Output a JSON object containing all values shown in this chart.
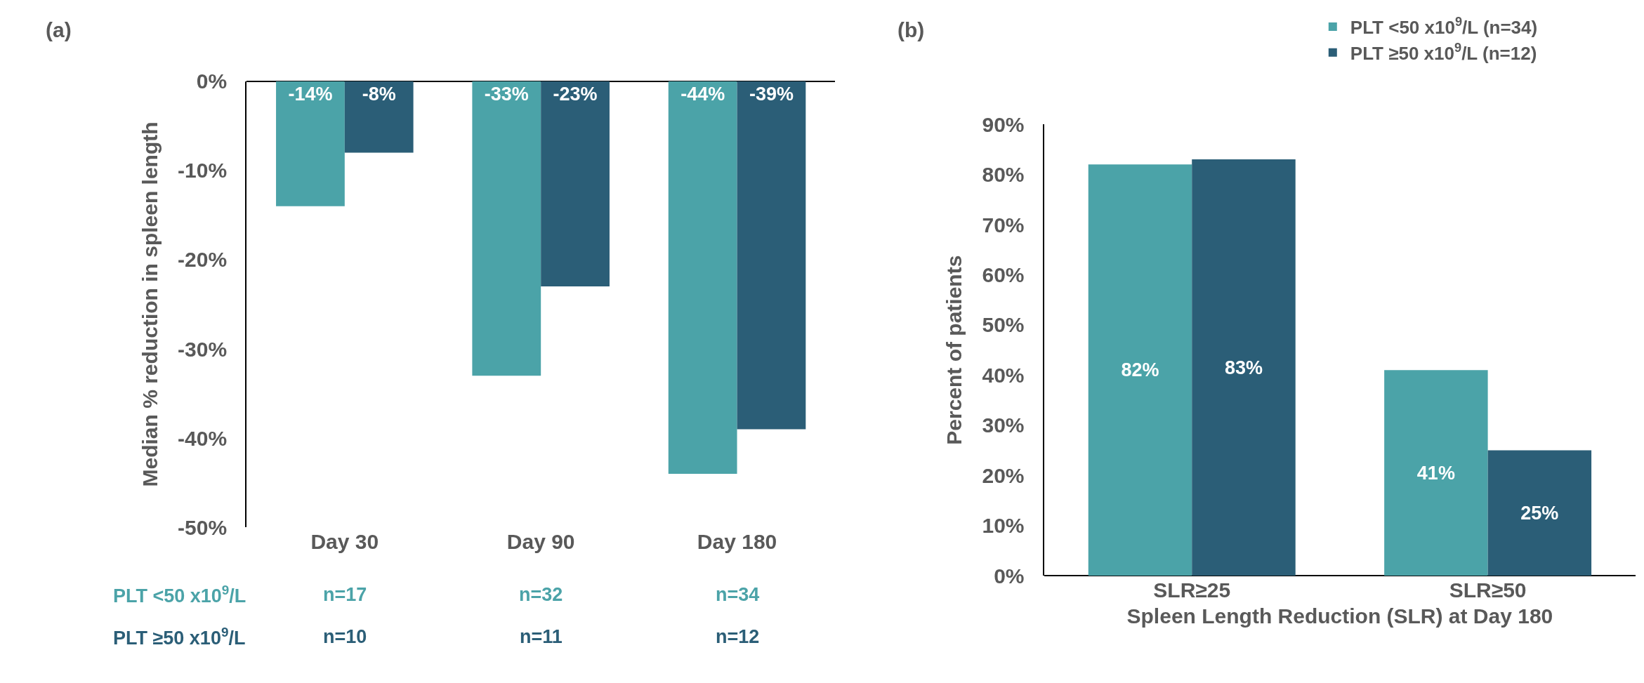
{
  "chart_data": [
    {
      "type": "bar",
      "title": "(a)",
      "ylabel": "Median % reduction in spleen length",
      "categories": [
        "Day 30",
        "Day 90",
        "Day 180"
      ],
      "series": [
        {
          "name": "PLT <50 x10$^{9}$/L",
          "color": "#4ba3a8",
          "values": [
            -14,
            -33,
            -44
          ],
          "value_labels": [
            "-14%",
            "-33%",
            "-44%"
          ]
        },
        {
          "name": "PLT ≥50 x10$^{9}$/L",
          "color": "#2b5e77",
          "values": [
            -8,
            -23,
            -39
          ],
          "value_labels": [
            "-8%",
            "-23%",
            "-39%"
          ]
        }
      ],
      "ylim": [
        -50,
        0
      ],
      "yticks": [
        {
          "value": -50,
          "label": "-50%"
        },
        {
          "value": -40,
          "label": "-40%"
        },
        {
          "value": -30,
          "label": "-30%"
        },
        {
          "value": -20,
          "label": "-20%"
        },
        {
          "value": -10,
          "label": "-10%"
        },
        {
          "value": 0,
          "label": "0%"
        }
      ],
      "annotations": [
        "n=17",
        "n=32",
        "n=34",
        "n=10",
        "n=11",
        "n=12"
      ],
      "legend": false
    },
    {
      "type": "bar",
      "title": "(b)",
      "xlabel": "Spleen Length Reduction (SLR) at Day 180",
      "ylabel": "Percent of patients",
      "categories": [
        "SLR≥25",
        "SLR≥50"
      ],
      "series": [
        {
          "name": "PLT <50 x10$^{9}$/L (n=34)",
          "color": "#4ba3a8",
          "values": [
            82,
            41
          ],
          "value_labels": [
            "82%",
            "41%"
          ]
        },
        {
          "name": "PLT ≥50 x10$^{9}$/L (n=12)",
          "color": "#2b5e77",
          "values": [
            83,
            25
          ],
          "value_labels": [
            "83%",
            "25%"
          ]
        }
      ],
      "ylim": [
        0,
        90
      ],
      "yticks": [
        {
          "value": 0,
          "label": "0%"
        },
        {
          "value": 10,
          "label": "10%"
        },
        {
          "value": 20,
          "label": "20%"
        },
        {
          "value": 30,
          "label": "30%"
        },
        {
          "value": 40,
          "label": "40%"
        },
        {
          "value": 50,
          "label": "50%"
        },
        {
          "value": 60,
          "label": "60%"
        },
        {
          "value": 70,
          "label": "70%"
        },
        {
          "value": 80,
          "label": "80%"
        },
        {
          "value": 90,
          "label": "90%"
        }
      ],
      "legend": "top right"
    }
  ]
}
